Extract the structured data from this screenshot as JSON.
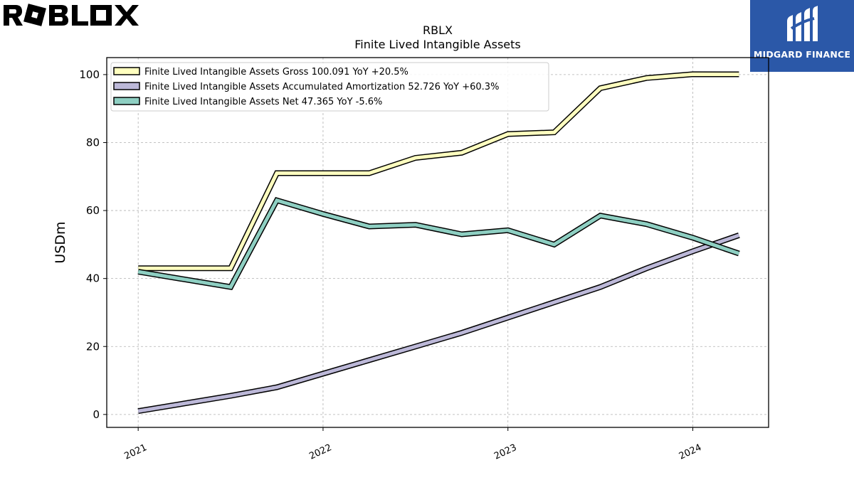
{
  "brand": {
    "left_logo_text": "ROBLOX",
    "right_logo_text": "MIDGARD FINANCE",
    "right_logo_bg": "#2b58a8"
  },
  "chart_data": {
    "type": "line",
    "title": "RBLX",
    "subtitle": "Finite Lived Intangible Assets",
    "xlabel": "",
    "ylabel": "USDm",
    "x_ticks": [
      "2021",
      "2022",
      "2023",
      "2024"
    ],
    "x_tick_values": [
      2021.0,
      2022.0,
      2023.0,
      2024.0
    ],
    "y_ticks": [
      0,
      20,
      40,
      60,
      80,
      100
    ],
    "xlim": [
      2020.83,
      2024.41
    ],
    "ylim": [
      -3.8,
      105
    ],
    "grid": true,
    "legend_position": "top-left",
    "x": [
      2021.0,
      2021.5,
      2021.75,
      2022.0,
      2022.25,
      2022.5,
      2022.75,
      2023.0,
      2023.25,
      2023.5,
      2023.75,
      2024.0,
      2024.25
    ],
    "series": [
      {
        "name": "Finite Lived Intangible Assets Gross",
        "legend_label": "Finite Lived Intangible Assets Gross  100.091 YoY +20.5%",
        "color": "#ffffbf",
        "values": [
          43.0,
          43.0,
          71.0,
          71.0,
          71.0,
          75.5,
          77.0,
          82.5,
          83.0,
          96.0,
          99.0,
          100.1,
          100.091
        ]
      },
      {
        "name": "Finite Lived Intangible Assets Accumulated Amortization",
        "legend_label": "Finite Lived Intangible Assets Accumulated Amortization  52.726 YoY +60.3%",
        "color": "#bcb8d8",
        "values": [
          1.0,
          5.5,
          8.0,
          12.0,
          16.0,
          20.0,
          24.0,
          28.5,
          33.0,
          37.5,
          43.0,
          48.0,
          52.726
        ]
      },
      {
        "name": "Finite Lived Intangible Assets Net",
        "legend_label": "Finite Lived Intangible Assets Net  47.365 YoY -5.6%",
        "color": "#8ecfc2",
        "values": [
          42.0,
          37.5,
          63.0,
          59.0,
          55.3,
          55.8,
          53.0,
          54.2,
          50.0,
          58.5,
          56.0,
          52.0,
          47.365
        ]
      }
    ]
  }
}
